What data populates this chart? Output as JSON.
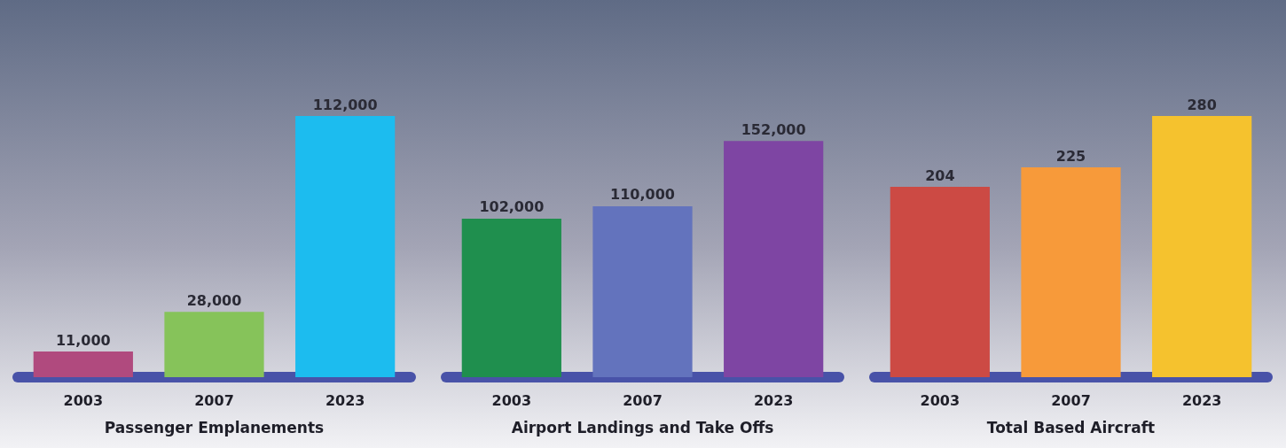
{
  "chart_data": [
    {
      "type": "bar",
      "xlabel": "Passenger Emplanements",
      "categories": [
        "2003",
        "2007",
        "2023"
      ],
      "values": [
        11000,
        28000,
        112000
      ],
      "value_labels": [
        "11,000",
        "28,000",
        "112,000"
      ],
      "colors": [
        "#b04a7e",
        "#86c35a",
        "#1cbcef"
      ]
    },
    {
      "type": "bar",
      "xlabel": "Airport Landings and Take Offs",
      "categories": [
        "2003",
        "2007",
        "2023"
      ],
      "values": [
        102000,
        110000,
        152000
      ],
      "value_labels": [
        "102,000",
        "110,000",
        "152,000"
      ],
      "colors": [
        "#1f8f4e",
        "#6373bd",
        "#7e45a3"
      ]
    },
    {
      "type": "bar",
      "xlabel": "Total Based Aircraft",
      "categories": [
        "2003",
        "2007",
        "2023"
      ],
      "values": [
        204,
        225,
        280
      ],
      "colors": [
        "#cc4a44",
        "#f79a3a",
        "#f5c22e"
      ],
      "data_labels": true
    }
  ]
}
